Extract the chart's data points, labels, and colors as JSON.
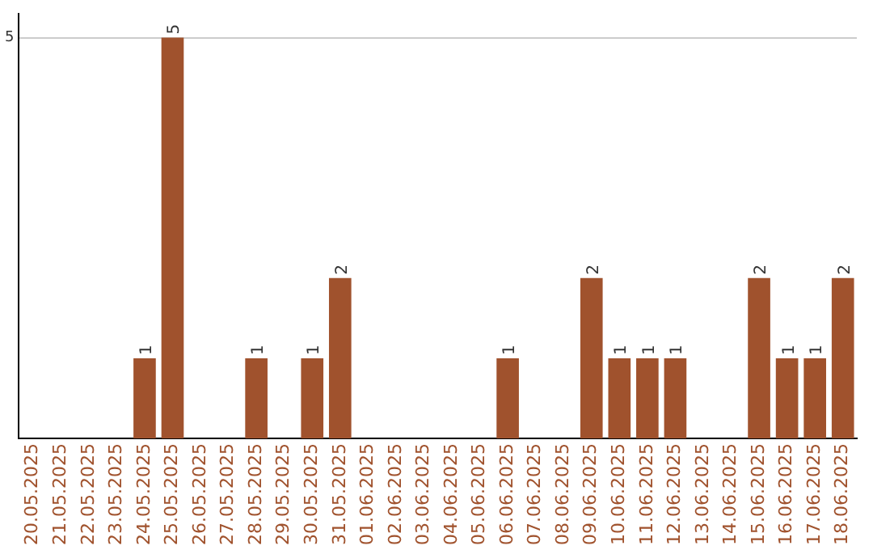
{
  "chart_data": {
    "type": "bar",
    "categories": [
      "20.05.2025",
      "21.05.2025",
      "22.05.2025",
      "23.05.2025",
      "24.05.2025",
      "25.05.2025",
      "26.05.2025",
      "27.05.2025",
      "28.05.2025",
      "29.05.2025",
      "30.05.2025",
      "31.05.2025",
      "01.06.2025",
      "02.06.2025",
      "03.06.2025",
      "04.06.2025",
      "05.06.2025",
      "06.06.2025",
      "07.06.2025",
      "08.06.2025",
      "09.06.2025",
      "10.06.2025",
      "11.06.2025",
      "12.06.2025",
      "13.06.2025",
      "14.06.2025",
      "15.06.2025",
      "16.06.2025",
      "17.06.2025",
      "18.06.2025"
    ],
    "values": [
      0,
      0,
      0,
      0,
      1,
      5,
      0,
      0,
      1,
      0,
      1,
      2,
      0,
      0,
      0,
      0,
      0,
      1,
      0,
      0,
      2,
      1,
      1,
      1,
      0,
      0,
      2,
      1,
      1,
      2
    ],
    "value_labels": [
      null,
      null,
      null,
      null,
      "1",
      "5",
      null,
      null,
      "1",
      null,
      "1",
      "2",
      null,
      null,
      null,
      null,
      null,
      "1",
      null,
      null,
      "2",
      "1",
      "1",
      "1",
      null,
      null,
      "2",
      "1",
      "1",
      "2"
    ],
    "color": "#a0522d",
    "ylim": [
      0,
      5.3
    ],
    "yticks": [
      5
    ],
    "grid": "y",
    "legend": false
  }
}
